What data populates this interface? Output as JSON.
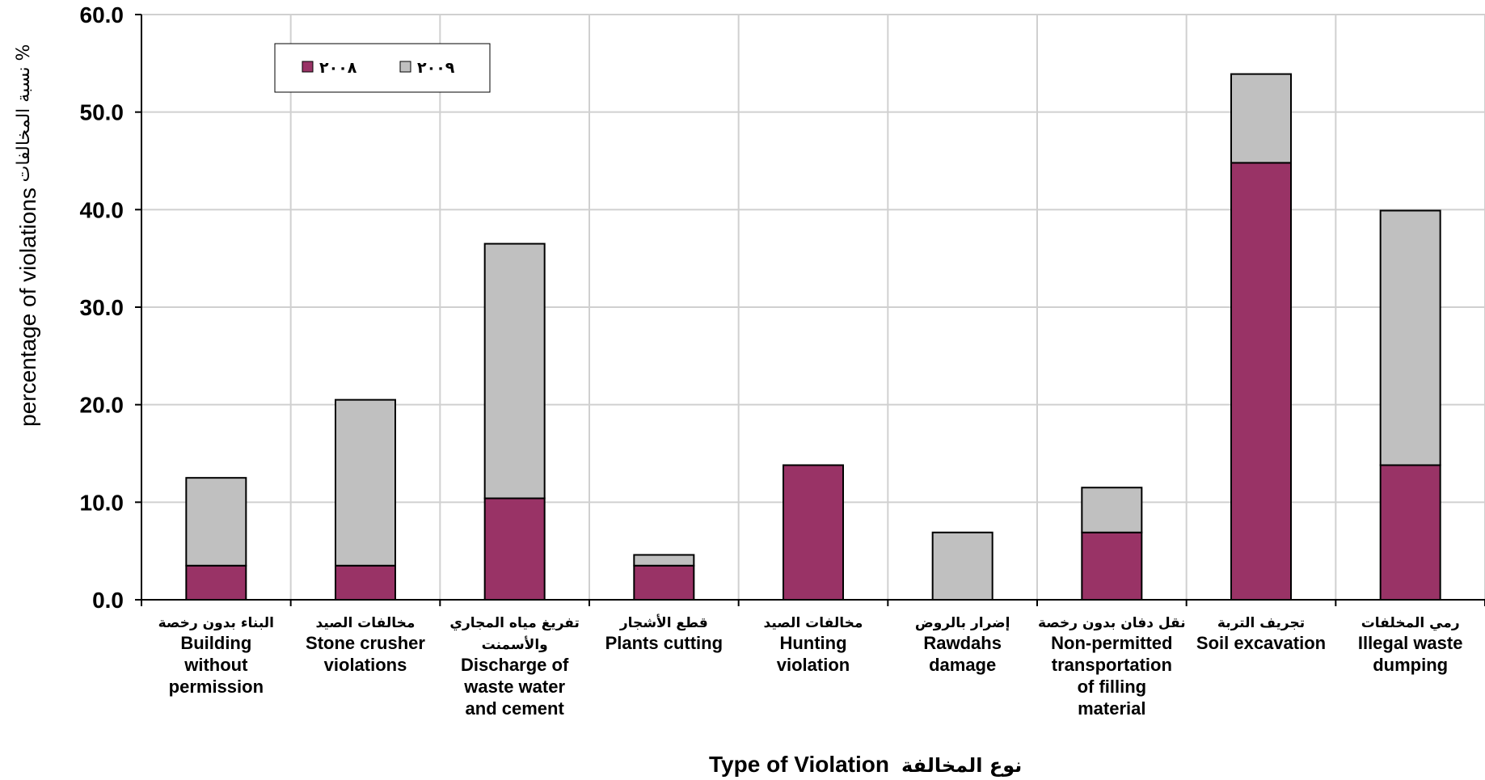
{
  "chart_data": {
    "type": "bar",
    "stacked": true,
    "categories": [
      {
        "ar": "البناء بدون رخصة",
        "en": [
          "Building",
          "without",
          "permission"
        ]
      },
      {
        "ar": "مخالفات الصيد",
        "en": [
          "Stone crusher",
          "violations"
        ]
      },
      {
        "ar": "تفريغ مياه المجاري\nوالأسمنت",
        "en": [
          "Discharge of",
          "waste water",
          "and cement"
        ]
      },
      {
        "ar": "قطع الأشجار",
        "en": [
          "Plants cutting"
        ]
      },
      {
        "ar": "مخالفات الصيد",
        "en": [
          "Hunting",
          "violation"
        ]
      },
      {
        "ar": "إضرار بالروض",
        "en": [
          "Rawdahs",
          "damage"
        ]
      },
      {
        "ar": "نقل دفان بدون رخصة",
        "en": [
          "Non-permitted",
          "transportation",
          "of filling",
          "material"
        ]
      },
      {
        "ar": "تجريف التربة",
        "en": [
          "Soil excavation"
        ]
      },
      {
        "ar": "رمي المخلفات",
        "en": [
          "Illegal waste",
          "dumping"
        ]
      }
    ],
    "series": [
      {
        "name": "٢٠٠٨",
        "color": "#993366",
        "values": [
          3.5,
          3.5,
          10.4,
          3.5,
          13.8,
          0.0,
          6.9,
          44.8,
          13.8
        ]
      },
      {
        "name": "٢٠٠٩",
        "color": "#C0C0C0",
        "values": [
          9.0,
          17.0,
          26.1,
          1.1,
          0.0,
          6.9,
          4.6,
          9.1,
          26.1
        ]
      }
    ],
    "ylim": [
      0,
      60
    ],
    "yticks": [
      "0.0",
      "10.0",
      "20.0",
      "30.0",
      "40.0",
      "50.0",
      "60.0"
    ],
    "xlabel": {
      "en": "Type of Violation",
      "ar": "نوع المخالفة"
    },
    "ylabel": {
      "en": "percentage of violations",
      "ar": "نسبة المخالفات  %"
    },
    "grid": true,
    "legend_position": "top-left"
  }
}
